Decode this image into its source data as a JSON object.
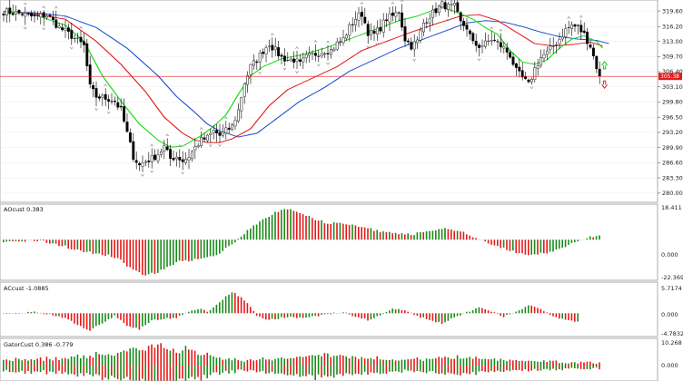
{
  "colors": {
    "bull": "#000000",
    "bear": "#000000",
    "jaw": "#1f4fd1",
    "teeth": "#e31a1a",
    "lips": "#18d818",
    "hist_up": "#1a8c1a",
    "hist_down": "#e31a1a",
    "price_line": "#e31a1a",
    "arrow_up": "#18c018",
    "arrow_down": "#e31a1a",
    "grid": "#e8e8e8"
  },
  "main": {
    "price_label": "305.38",
    "price_value": 305.38,
    "ylim": [
      278.0,
      321.7
    ],
    "y_ticks": [
      "319.60",
      "316.20",
      "313.00",
      "309.70",
      "306.40",
      "303.10",
      "299.80",
      "296.50",
      "293.20",
      "289.90",
      "286.60",
      "283.30",
      "280.00"
    ]
  },
  "panels": [
    {
      "title": "AOcust 0.383",
      "ticks": [
        "18.411",
        "0.000",
        "-22.369"
      ]
    },
    {
      "title": "ACcust -1.0885",
      "ticks": [
        "5.7174",
        "0.000",
        "-4.7832"
      ]
    },
    {
      "title": "GatorCust 0.386 -0.779",
      "ticks": [
        "10.268",
        "0.000"
      ]
    }
  ],
  "chart_data": {
    "type": "candlestick",
    "x": [],
    "close_keypoints": [
      [
        0,
        319.5
      ],
      [
        6,
        319.0
      ],
      [
        10,
        318.2
      ],
      [
        14,
        318.8
      ],
      [
        18,
        316.0
      ],
      [
        22,
        314.2
      ],
      [
        26,
        312.0
      ],
      [
        28,
        303.0
      ],
      [
        30,
        301.0
      ],
      [
        34,
        300.5
      ],
      [
        36,
        300.0
      ],
      [
        38,
        298.0
      ],
      [
        40,
        293.0
      ],
      [
        42,
        288.0
      ],
      [
        44,
        286.0
      ],
      [
        46,
        287.0
      ],
      [
        48,
        287.5
      ],
      [
        50,
        288.5
      ],
      [
        52,
        290.0
      ],
      [
        54,
        287.5
      ],
      [
        56,
        288.0
      ],
      [
        58,
        287.0
      ],
      [
        60,
        288.0
      ],
      [
        62,
        290.0
      ],
      [
        64,
        291.5
      ],
      [
        66,
        292.0
      ],
      [
        68,
        293.5
      ],
      [
        70,
        292.5
      ],
      [
        72,
        293.5
      ],
      [
        74,
        294.5
      ],
      [
        76,
        298.0
      ],
      [
        78,
        304.0
      ],
      [
        80,
        307.5
      ],
      [
        82,
        309.0
      ],
      [
        84,
        311.0
      ],
      [
        86,
        312.5
      ],
      [
        88,
        311.0
      ],
      [
        90,
        309.5
      ],
      [
        92,
        309.0
      ],
      [
        94,
        309.0
      ],
      [
        96,
        308.0
      ],
      [
        98,
        309.5
      ],
      [
        100,
        310.0
      ],
      [
        102,
        310.5
      ],
      [
        104,
        311.0
      ],
      [
        106,
        311.0
      ],
      [
        108,
        312.5
      ],
      [
        110,
        313.5
      ],
      [
        112,
        316.0
      ],
      [
        114,
        318.0
      ],
      [
        116,
        319.0
      ],
      [
        118,
        315.0
      ],
      [
        120,
        314.5
      ],
      [
        122,
        316.0
      ],
      [
        124,
        318.0
      ],
      [
        126,
        318.5
      ],
      [
        128,
        319.5
      ],
      [
        130,
        313.5
      ],
      [
        132,
        312.0
      ],
      [
        134,
        313.0
      ],
      [
        136,
        317.0
      ],
      [
        138,
        318.5
      ],
      [
        140,
        319.8
      ],
      [
        142,
        321.0
      ],
      [
        144,
        320.5
      ],
      [
        146,
        320.5
      ],
      [
        148,
        317.0
      ],
      [
        150,
        316.0
      ],
      [
        152,
        312.5
      ],
      [
        154,
        312.0
      ],
      [
        156,
        312.5
      ],
      [
        158,
        313.5
      ],
      [
        160,
        312.5
      ],
      [
        162,
        311.5
      ],
      [
        164,
        310.0
      ],
      [
        166,
        306.5
      ],
      [
        168,
        305.0
      ],
      [
        170,
        303.5
      ],
      [
        172,
        307.0
      ],
      [
        174,
        309.5
      ],
      [
        176,
        310.5
      ],
      [
        178,
        312.0
      ],
      [
        180,
        313.5
      ],
      [
        182,
        315.5
      ],
      [
        184,
        316.5
      ],
      [
        186,
        316.0
      ],
      [
        188,
        314.5
      ],
      [
        190,
        312.0
      ],
      [
        192,
        307.5
      ],
      [
        193,
        305.4
      ]
    ],
    "alligator": {
      "jaw": [
        [
          0,
          319.4
        ],
        [
          10,
          319.2
        ],
        [
          20,
          318.5
        ],
        [
          30,
          316.0
        ],
        [
          40,
          311.5
        ],
        [
          50,
          305.5
        ],
        [
          56,
          301.0
        ],
        [
          62,
          297.5
        ],
        [
          66,
          295.0
        ],
        [
          70,
          293.5
        ],
        [
          76,
          292.2
        ],
        [
          82,
          293.0
        ],
        [
          88,
          296.0
        ],
        [
          96,
          300.0
        ],
        [
          104,
          303.0
        ],
        [
          112,
          306.5
        ],
        [
          120,
          309.0
        ],
        [
          128,
          311.5
        ],
        [
          136,
          313.5
        ],
        [
          144,
          315.5
        ],
        [
          150,
          317.0
        ],
        [
          156,
          317.5
        ],
        [
          162,
          317.2
        ],
        [
          168,
          316.2
        ],
        [
          174,
          315.0
        ],
        [
          180,
          314.0
        ],
        [
          186,
          313.5
        ],
        [
          192,
          313.2
        ],
        [
          196,
          312.5
        ]
      ],
      "teeth": [
        [
          0,
          319.5
        ],
        [
          10,
          319.0
        ],
        [
          20,
          317.8
        ],
        [
          30,
          313.0
        ],
        [
          38,
          308.0
        ],
        [
          46,
          302.0
        ],
        [
          52,
          296.5
        ],
        [
          58,
          293.0
        ],
        [
          62,
          291.5
        ],
        [
          66,
          291.0
        ],
        [
          70,
          291.0
        ],
        [
          74,
          291.8
        ],
        [
          80,
          294.0
        ],
        [
          86,
          299.0
        ],
        [
          92,
          302.5
        ],
        [
          100,
          305.0
        ],
        [
          108,
          307.5
        ],
        [
          116,
          311.0
        ],
        [
          124,
          313.0
        ],
        [
          132,
          315.0
        ],
        [
          140,
          316.8
        ],
        [
          148,
          318.5
        ],
        [
          154,
          318.8
        ],
        [
          160,
          317.5
        ],
        [
          166,
          315.0
        ],
        [
          172,
          312.5
        ],
        [
          178,
          312.0
        ],
        [
          184,
          312.3
        ],
        [
          190,
          312.8
        ],
        [
          194,
          312.0
        ]
      ],
      "lips": [
        [
          0,
          319.6
        ],
        [
          10,
          318.8
        ],
        [
          20,
          316.5
        ],
        [
          26,
          313.0
        ],
        [
          32,
          305.5
        ],
        [
          38,
          300.0
        ],
        [
          44,
          295.0
        ],
        [
          50,
          291.5
        ],
        [
          54,
          290.0
        ],
        [
          58,
          290.2
        ],
        [
          64,
          292.5
        ],
        [
          68,
          294.5
        ],
        [
          72,
          297.0
        ],
        [
          76,
          301.5
        ],
        [
          80,
          305.5
        ],
        [
          84,
          307.5
        ],
        [
          90,
          309.2
        ],
        [
          96,
          310.0
        ],
        [
          104,
          311.5
        ],
        [
          112,
          313.5
        ],
        [
          120,
          315.5
        ],
        [
          128,
          317.5
        ],
        [
          134,
          318.5
        ],
        [
          142,
          320.5
        ],
        [
          148,
          319.0
        ],
        [
          152,
          317.8
        ],
        [
          156,
          316.0
        ],
        [
          160,
          314.5
        ],
        [
          164,
          311.0
        ],
        [
          168,
          308.5
        ],
        [
          172,
          308.0
        ],
        [
          176,
          309.0
        ],
        [
          180,
          311.5
        ],
        [
          184,
          313.5
        ],
        [
          188,
          314.2
        ],
        [
          192,
          313.0
        ],
        [
          194,
          311.5
        ]
      ]
    },
    "ao_keypoints": [
      [
        0,
        -0.8
      ],
      [
        10,
        -0.4
      ],
      [
        16,
        -2.0
      ],
      [
        22,
        -5.0
      ],
      [
        28,
        -7.5
      ],
      [
        34,
        -9.0
      ],
      [
        38,
        -12.0
      ],
      [
        42,
        -17.5
      ],
      [
        46,
        -20.5
      ],
      [
        50,
        -19.0
      ],
      [
        54,
        -14.5
      ],
      [
        58,
        -12.0
      ],
      [
        64,
        -11.5
      ],
      [
        70,
        -8.0
      ],
      [
        76,
        0.5
      ],
      [
        80,
        6.5
      ],
      [
        84,
        12.0
      ],
      [
        88,
        15.5
      ],
      [
        92,
        17.5
      ],
      [
        96,
        16.0
      ],
      [
        100,
        12.5
      ],
      [
        104,
        10.0
      ],
      [
        110,
        9.0
      ],
      [
        116,
        7.5
      ],
      [
        120,
        5.5
      ],
      [
        126,
        4.0
      ],
      [
        132,
        3.0
      ],
      [
        138,
        5.0
      ],
      [
        144,
        6.5
      ],
      [
        148,
        5.0
      ],
      [
        154,
        0.5
      ],
      [
        158,
        -2.5
      ],
      [
        164,
        -6.5
      ],
      [
        170,
        -9.0
      ],
      [
        176,
        -7.5
      ],
      [
        182,
        -4.0
      ],
      [
        188,
        0.5
      ],
      [
        192,
        2.5
      ],
      [
        196,
        1.0
      ]
    ],
    "ac_keypoints": [
      [
        0,
        -0.2
      ],
      [
        10,
        0.2
      ],
      [
        16,
        -0.4
      ],
      [
        20,
        -1.0
      ],
      [
        24,
        -2.5
      ],
      [
        28,
        -4.0
      ],
      [
        30,
        -3.0
      ],
      [
        34,
        -1.5
      ],
      [
        36,
        -0.5
      ],
      [
        40,
        -2.8
      ],
      [
        44,
        -3.5
      ],
      [
        48,
        -1.5
      ],
      [
        52,
        -1.2
      ],
      [
        56,
        -1.0
      ],
      [
        60,
        0.5
      ],
      [
        64,
        1.0
      ],
      [
        66,
        0.2
      ],
      [
        70,
        2.5
      ],
      [
        74,
        4.8
      ],
      [
        78,
        3.0
      ],
      [
        82,
        -0.5
      ],
      [
        86,
        -1.5
      ],
      [
        92,
        -0.8
      ],
      [
        98,
        -1.0
      ],
      [
        104,
        -0.3
      ],
      [
        110,
        0.3
      ],
      [
        114,
        -0.8
      ],
      [
        118,
        -1.5
      ],
      [
        122,
        -0.5
      ],
      [
        126,
        1.2
      ],
      [
        130,
        0.5
      ],
      [
        134,
        -0.6
      ],
      [
        138,
        -1.5
      ],
      [
        142,
        -2.3
      ],
      [
        146,
        -1.0
      ],
      [
        150,
        0.2
      ],
      [
        154,
        1.2
      ],
      [
        158,
        0.4
      ],
      [
        162,
        -0.8
      ],
      [
        166,
        0.4
      ],
      [
        170,
        1.8
      ],
      [
        174,
        1.0
      ],
      [
        178,
        -0.8
      ],
      [
        182,
        -1.5
      ],
      [
        186,
        -2.0
      ]
    ],
    "gator_keypoints": [
      [
        0,
        2.5
      ],
      [
        20,
        3.0
      ],
      [
        40,
        6.0
      ],
      [
        50,
        8.5
      ],
      [
        60,
        6.5
      ],
      [
        70,
        3.0
      ],
      [
        80,
        2.0
      ],
      [
        90,
        3.5
      ],
      [
        100,
        5.0
      ],
      [
        110,
        4.0
      ],
      [
        120,
        3.0
      ],
      [
        130,
        2.5
      ],
      [
        140,
        3.0
      ],
      [
        150,
        3.5
      ],
      [
        160,
        2.5
      ],
      [
        170,
        2.0
      ],
      [
        180,
        1.5
      ],
      [
        196,
        1.0
      ]
    ],
    "ao_ylim": [
      -22.369,
      18.411
    ],
    "ac_ylim": [
      -4.7832,
      5.7174
    ],
    "gator_ylim": [
      -10.268,
      10.268
    ]
  }
}
